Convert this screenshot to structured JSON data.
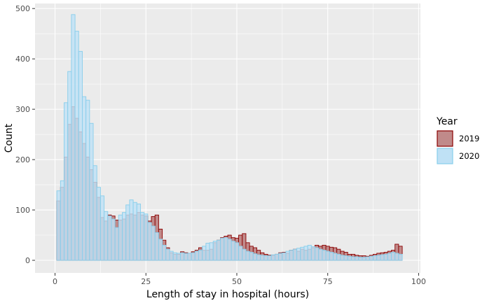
{
  "chart_data": {
    "type": "bar",
    "title": "",
    "xlabel": "Length of stay in hospital (hours)",
    "ylabel": "Count",
    "xlim": [
      -5.5,
      100.5
    ],
    "ylim": [
      -25,
      510
    ],
    "x_ticks": [
      0,
      25,
      50,
      75,
      100
    ],
    "y_ticks": [
      0,
      100,
      200,
      300,
      400,
      500
    ],
    "grid": true,
    "bin_width": 1,
    "bin_start": 0.5,
    "legend": {
      "title": "Year",
      "position": "right"
    },
    "series": [
      {
        "name": "2019",
        "fill": "#c08a8a",
        "stroke": "#8b0000",
        "values": [
          118,
          145,
          205,
          270,
          305,
          282,
          255,
          232,
          205,
          180,
          155,
          125,
          85,
          78,
          90,
          88,
          80,
          80,
          82,
          90,
          92,
          90,
          95,
          90,
          88,
          78,
          87,
          90,
          62,
          40,
          25,
          15,
          12,
          12,
          17,
          15,
          14,
          17,
          20,
          25,
          20,
          20,
          22,
          35,
          40,
          45,
          48,
          50,
          45,
          44,
          50,
          53,
          35,
          28,
          25,
          20,
          15,
          12,
          10,
          10,
          12,
          15,
          16,
          14,
          20,
          22,
          18,
          22,
          20,
          22,
          25,
          30,
          28,
          30,
          28,
          26,
          25,
          22,
          18,
          16,
          12,
          12,
          10,
          9,
          9,
          8,
          10,
          12,
          14,
          15,
          16,
          18,
          20,
          32,
          28
        ]
      },
      {
        "name": "2020",
        "fill": "#bfe1f5",
        "stroke": "#87ceeb",
        "values": [
          138,
          158,
          313,
          375,
          488,
          455,
          415,
          325,
          318,
          272,
          188,
          145,
          128,
          97,
          88,
          82,
          65,
          90,
          95,
          110,
          120,
          115,
          112,
          95,
          92,
          75,
          68,
          55,
          42,
          30,
          22,
          18,
          15,
          14,
          15,
          14,
          14,
          15,
          18,
          20,
          28,
          34,
          35,
          38,
          40,
          44,
          45,
          42,
          38,
          35,
          28,
          22,
          18,
          16,
          13,
          11,
          10,
          9,
          9,
          11,
          12,
          14,
          15,
          18,
          20,
          22,
          24,
          26,
          28,
          30,
          27,
          25,
          22,
          20,
          18,
          16,
          14,
          12,
          10,
          9,
          8,
          7,
          7,
          6,
          6,
          7,
          8,
          9,
          10,
          11,
          12,
          14,
          16,
          14,
          12
        ]
      }
    ]
  }
}
